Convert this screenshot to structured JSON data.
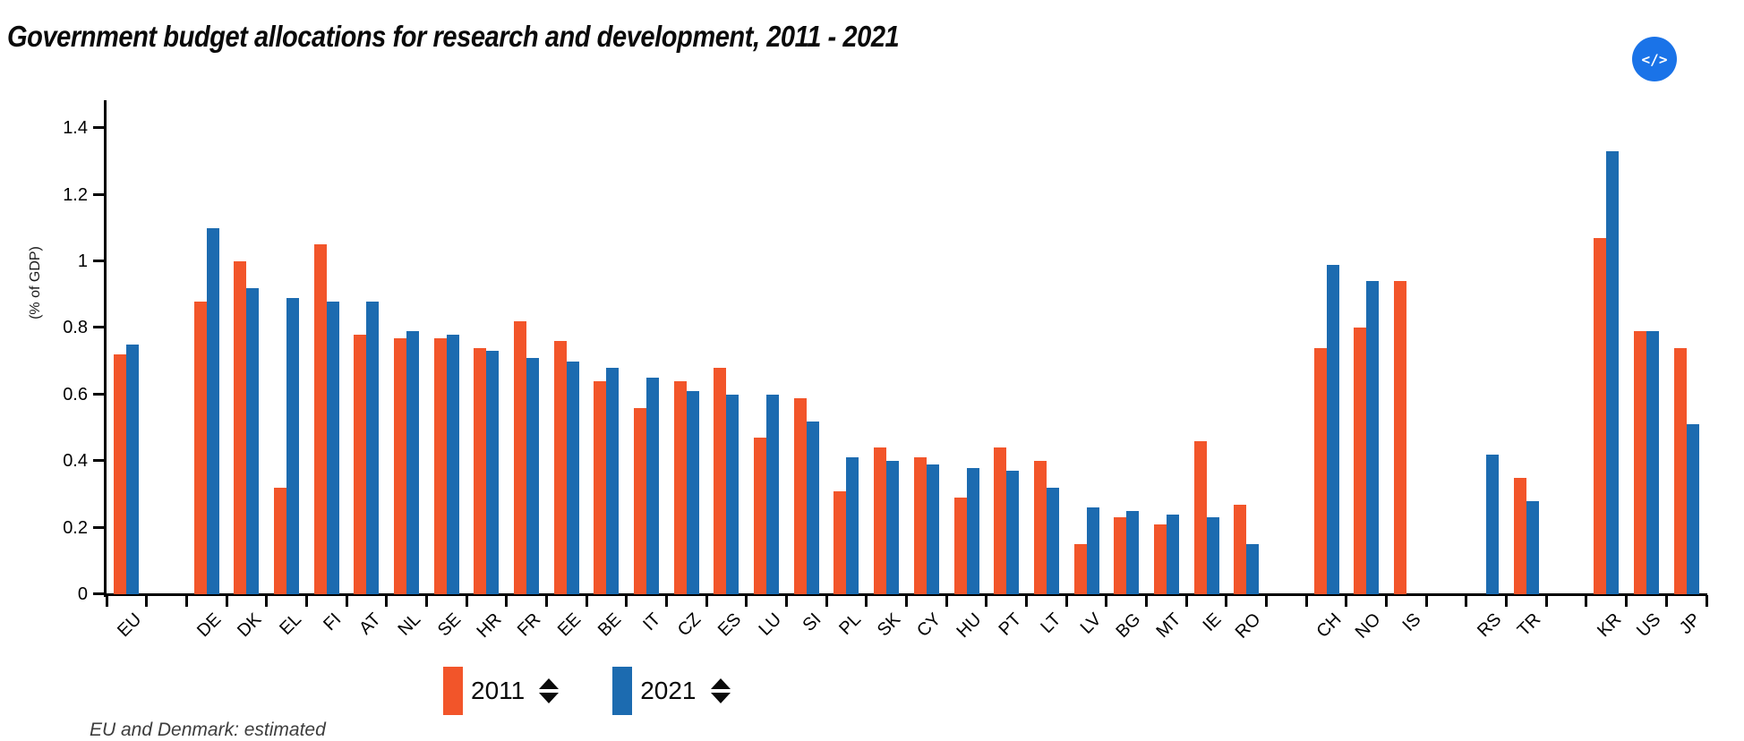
{
  "header": {
    "title": "Government budget allocations for research and development, 2011 - 2021",
    "embed_icon": "</>"
  },
  "legend": {
    "items": [
      {
        "label": "2011",
        "color": "#F2552A"
      },
      {
        "label": "2021",
        "color": "#1C6BB0"
      }
    ]
  },
  "footnote": "EU and Denmark: estimated",
  "chart_data": {
    "type": "bar",
    "title": "Government budget allocations for research and development, 2011 - 2021",
    "ylabel": "(% of GDP)",
    "ylim": [
      0,
      1.4
    ],
    "yticks": [
      0,
      0.2,
      0.4,
      0.6,
      0.8,
      1,
      1.2,
      1.4
    ],
    "grid": false,
    "legend_position": "bottom",
    "categories": [
      "EU",
      "",
      "DE",
      "DK",
      "EL",
      "FI",
      "AT",
      "NL",
      "SE",
      "HR",
      "FR",
      "EE",
      "BE",
      "IT",
      "CZ",
      "ES",
      "LU",
      "SI",
      "PL",
      "SK",
      "CY",
      "HU",
      "PT",
      "LT",
      "LV",
      "BG",
      "MT",
      "IE",
      "RO",
      "",
      "CH",
      "NO",
      "IS",
      "",
      "RS",
      "TR",
      "",
      "KR",
      "US",
      "JP"
    ],
    "series": [
      {
        "name": "2011",
        "color": "#F2552A",
        "values": [
          0.72,
          null,
          0.88,
          1.0,
          0.32,
          1.05,
          0.78,
          0.77,
          0.77,
          0.74,
          0.82,
          0.76,
          0.64,
          0.56,
          0.64,
          0.68,
          0.47,
          0.59,
          0.31,
          0.44,
          0.41,
          0.29,
          0.44,
          0.4,
          0.15,
          0.23,
          0.21,
          0.46,
          0.27,
          null,
          0.74,
          0.8,
          0.94,
          null,
          null,
          0.35,
          null,
          1.07,
          0.79,
          0.74
        ]
      },
      {
        "name": "2021",
        "color": "#1C6BB0",
        "values": [
          0.75,
          null,
          1.1,
          0.92,
          0.89,
          0.88,
          0.88,
          0.79,
          0.78,
          0.73,
          0.71,
          0.7,
          0.68,
          0.65,
          0.61,
          0.6,
          0.6,
          0.52,
          0.41,
          0.4,
          0.39,
          0.38,
          0.37,
          0.32,
          0.26,
          0.25,
          0.24,
          0.23,
          0.15,
          null,
          0.99,
          0.94,
          null,
          null,
          0.42,
          0.28,
          null,
          1.33,
          0.79,
          0.51
        ]
      }
    ]
  }
}
